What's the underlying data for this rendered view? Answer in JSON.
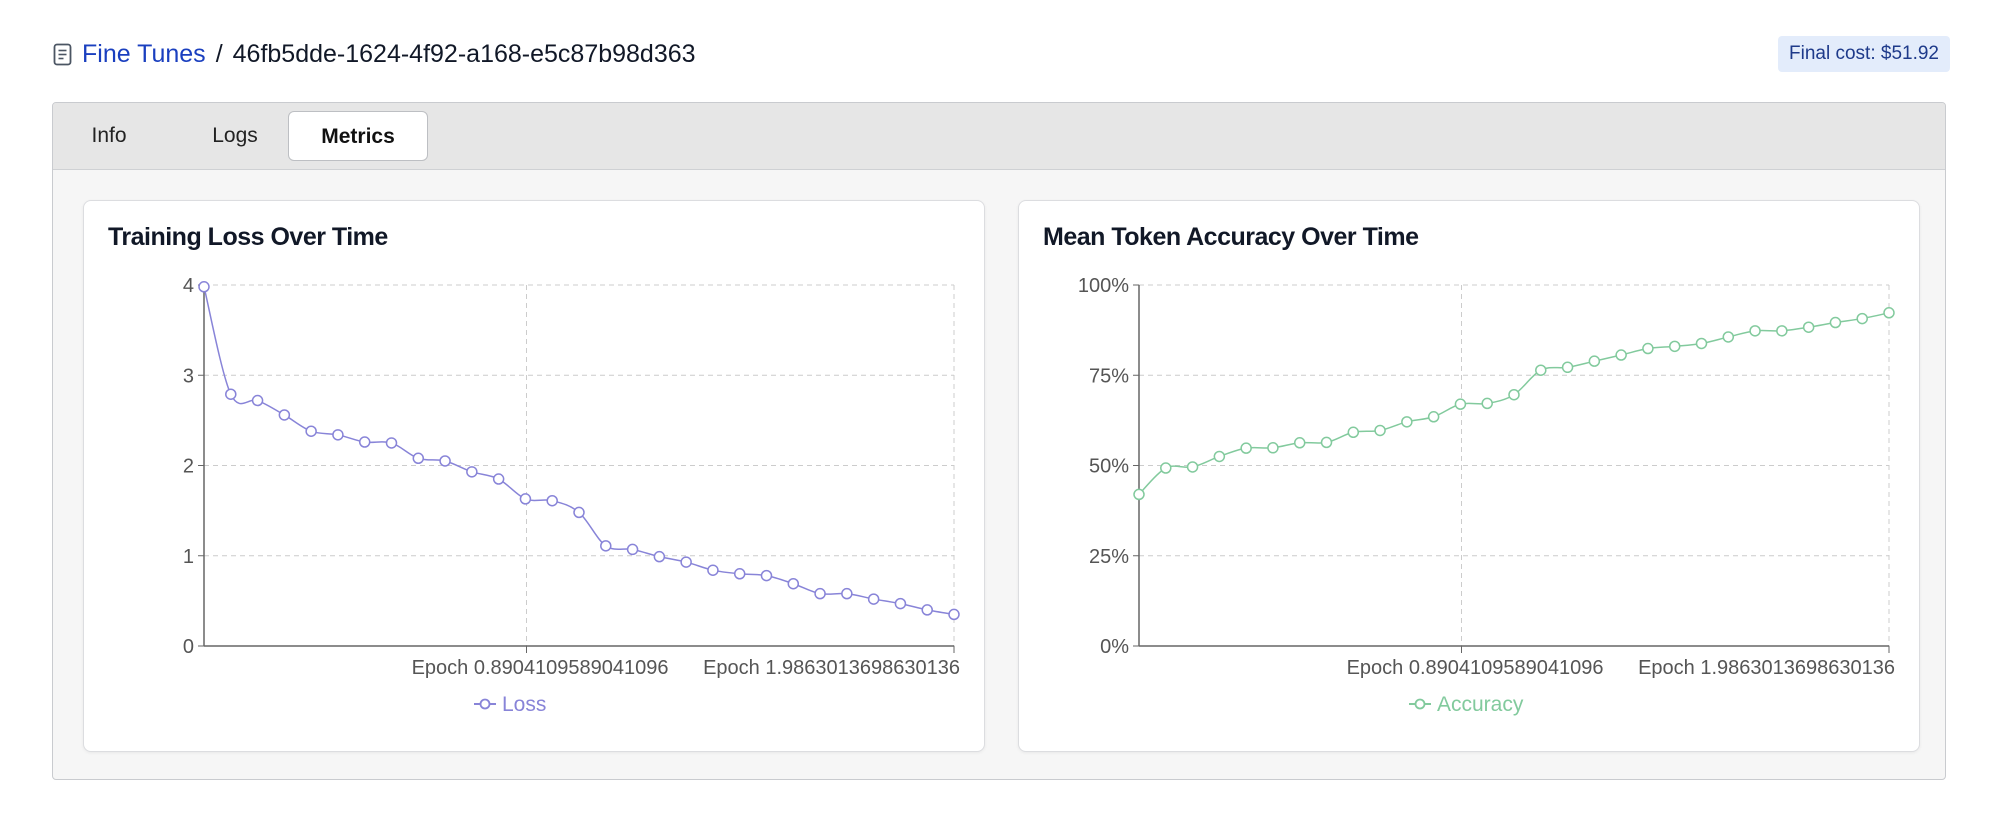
{
  "header": {
    "breadcrumb_link": "Fine Tunes",
    "separator": "/",
    "job_id": "46fb5dde-1624-4f92-a168-e5c87b98d363",
    "cost_badge": "Final cost: $51.92"
  },
  "tabs": [
    {
      "label": "Info",
      "active": false
    },
    {
      "label": "Logs",
      "active": false
    },
    {
      "label": "Metrics",
      "active": true
    }
  ],
  "icons": {
    "breadcrumb": "document-icon",
    "legend_marker": "line-circle-icon"
  },
  "colors": {
    "link": "#1a3fbf",
    "loss": "#8884d8",
    "accuracy": "#82ca9d"
  },
  "chart_data": [
    {
      "type": "line",
      "title": "Training Loss Over Time",
      "x_tick_labels": [
        "Epoch 0.8904109589041096",
        "Epoch 1.9863013698630136"
      ],
      "y_tick_labels": [
        "0",
        "1",
        "2",
        "3",
        "4"
      ],
      "ylim": [
        0,
        4
      ],
      "grid": true,
      "legend": "bottom-center",
      "series": [
        {
          "name": "Loss",
          "values": [
            3.98,
            2.79,
            2.72,
            2.56,
            2.38,
            2.34,
            2.26,
            2.25,
            2.08,
            2.05,
            1.93,
            1.85,
            1.63,
            1.61,
            1.48,
            1.11,
            1.07,
            0.99,
            0.93,
            0.84,
            0.8,
            0.78,
            0.69,
            0.58,
            0.58,
            0.52,
            0.47,
            0.4,
            0.35
          ]
        }
      ]
    },
    {
      "type": "line",
      "title": "Mean Token Accuracy Over Time",
      "x_tick_labels": [
        "Epoch 0.8904109589041096",
        "Epoch 1.9863013698630136"
      ],
      "y_tick_labels": [
        "0%",
        "25%",
        "50%",
        "75%",
        "100%"
      ],
      "ylim": [
        0,
        100
      ],
      "grid": true,
      "legend": "bottom-center",
      "series": [
        {
          "name": "Accuracy",
          "values": [
            42,
            49.3,
            49.6,
            52.5,
            54.8,
            54.9,
            56.3,
            56.4,
            59.2,
            59.7,
            62.1,
            63.5,
            67,
            67.2,
            69.6,
            76.4,
            77.2,
            78.9,
            80.6,
            82.4,
            83,
            83.8,
            85.6,
            87.3,
            87.3,
            88.3,
            89.6,
            90.7,
            92.3
          ]
        }
      ]
    }
  ]
}
